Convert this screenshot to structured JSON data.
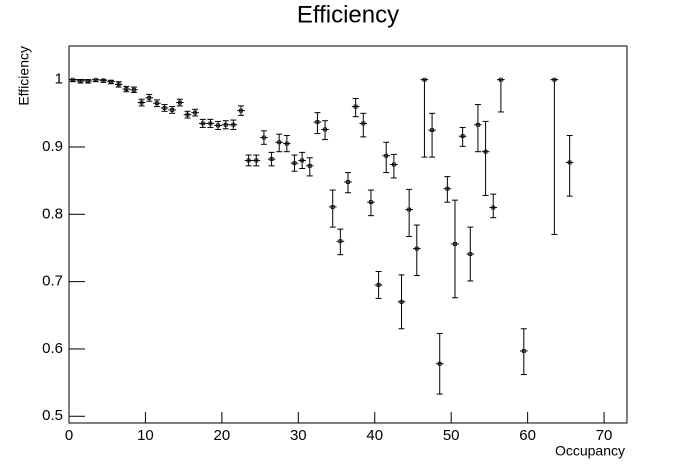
{
  "chart_data": {
    "type": "errorbar",
    "title": "Efficiency",
    "x_label": "Occupancy",
    "y_label": "Efficiency",
    "x": [
      0.5,
      1.5,
      2.5,
      3.5,
      4.5,
      5.5,
      6.5,
      7.5,
      8.5,
      9.5,
      10.5,
      11.5,
      12.5,
      13.5,
      14.5,
      15.5,
      16.5,
      17.5,
      18.5,
      19.5,
      20.5,
      21.5,
      22.5,
      23.5,
      24.5,
      25.5,
      26.5,
      27.5,
      28.5,
      29.5,
      30.5,
      31.5,
      32.5,
      33.5,
      34.5,
      35.5,
      36.5,
      37.5,
      38.5,
      39.5,
      40.5,
      41.5,
      42.5,
      43.5,
      44.5,
      45.5,
      46.5,
      47.5,
      48.5,
      49.5,
      50.5,
      51.5,
      52.5,
      53.5,
      54.5,
      55.5,
      56.5,
      59.5,
      63.5,
      65.5
    ],
    "values": [
      1.0,
      0.998,
      0.998,
      1.0,
      0.999,
      0.997,
      0.993,
      0.986,
      0.985,
      0.966,
      0.973,
      0.965,
      0.958,
      0.955,
      0.966,
      0.948,
      0.951,
      0.935,
      0.935,
      0.932,
      0.933,
      0.933,
      0.954,
      0.88,
      0.88,
      0.914,
      0.882,
      0.907,
      0.905,
      0.876,
      0.88,
      0.872,
      0.937,
      0.926,
      0.811,
      0.76,
      0.848,
      0.96,
      0.935,
      0.818,
      0.695,
      0.887,
      0.874,
      0.67,
      0.807,
      0.749,
      1.0,
      0.925,
      0.578,
      0.838,
      0.756,
      0.916,
      0.741,
      0.933,
      0.893,
      0.81,
      1.0,
      0.597,
      1.0,
      0.877
    ],
    "errors_low": [
      0.003,
      0.003,
      0.003,
      0.003,
      0.003,
      0.003,
      0.004,
      0.004,
      0.004,
      0.005,
      0.005,
      0.005,
      0.005,
      0.005,
      0.005,
      0.005,
      0.005,
      0.006,
      0.006,
      0.006,
      0.006,
      0.007,
      0.007,
      0.008,
      0.008,
      0.01,
      0.01,
      0.014,
      0.012,
      0.012,
      0.012,
      0.015,
      0.017,
      0.015,
      0.03,
      0.02,
      0.016,
      0.015,
      0.02,
      0.02,
      0.02,
      0.025,
      0.02,
      0.04,
      0.04,
      0.04,
      0.115,
      0.04,
      0.045,
      0.02,
      0.08,
      0.015,
      0.04,
      0.04,
      0.065,
      0.015,
      0.048,
      0.035,
      0.23,
      0.05
    ],
    "errors_high": [
      0,
      0.002,
      0.002,
      0,
      0.001,
      0.002,
      0.004,
      0.004,
      0.004,
      0.005,
      0.005,
      0.005,
      0.005,
      0.005,
      0.005,
      0.005,
      0.005,
      0.006,
      0.006,
      0.006,
      0.006,
      0.007,
      0.007,
      0.008,
      0.008,
      0.01,
      0.01,
      0.012,
      0.012,
      0.012,
      0.012,
      0.012,
      0.014,
      0.013,
      0.025,
      0.018,
      0.014,
      0.012,
      0.015,
      0.018,
      0.02,
      0.02,
      0.015,
      0.04,
      0.03,
      0.035,
      0,
      0.025,
      0.045,
      0.018,
      0.065,
      0.013,
      0.04,
      0.03,
      0.045,
      0.02,
      0,
      0.033,
      0,
      0.04
    ],
    "x_error": 0.5,
    "color": "#000000",
    "xlim": [
      0,
      73
    ],
    "xticks": [
      0,
      10,
      20,
      30,
      40,
      50,
      60,
      70
    ],
    "ylim": [
      0.49,
      1.05
    ],
    "yticks": [
      0.5,
      0.6,
      0.7,
      0.8,
      0.9,
      1
    ]
  }
}
